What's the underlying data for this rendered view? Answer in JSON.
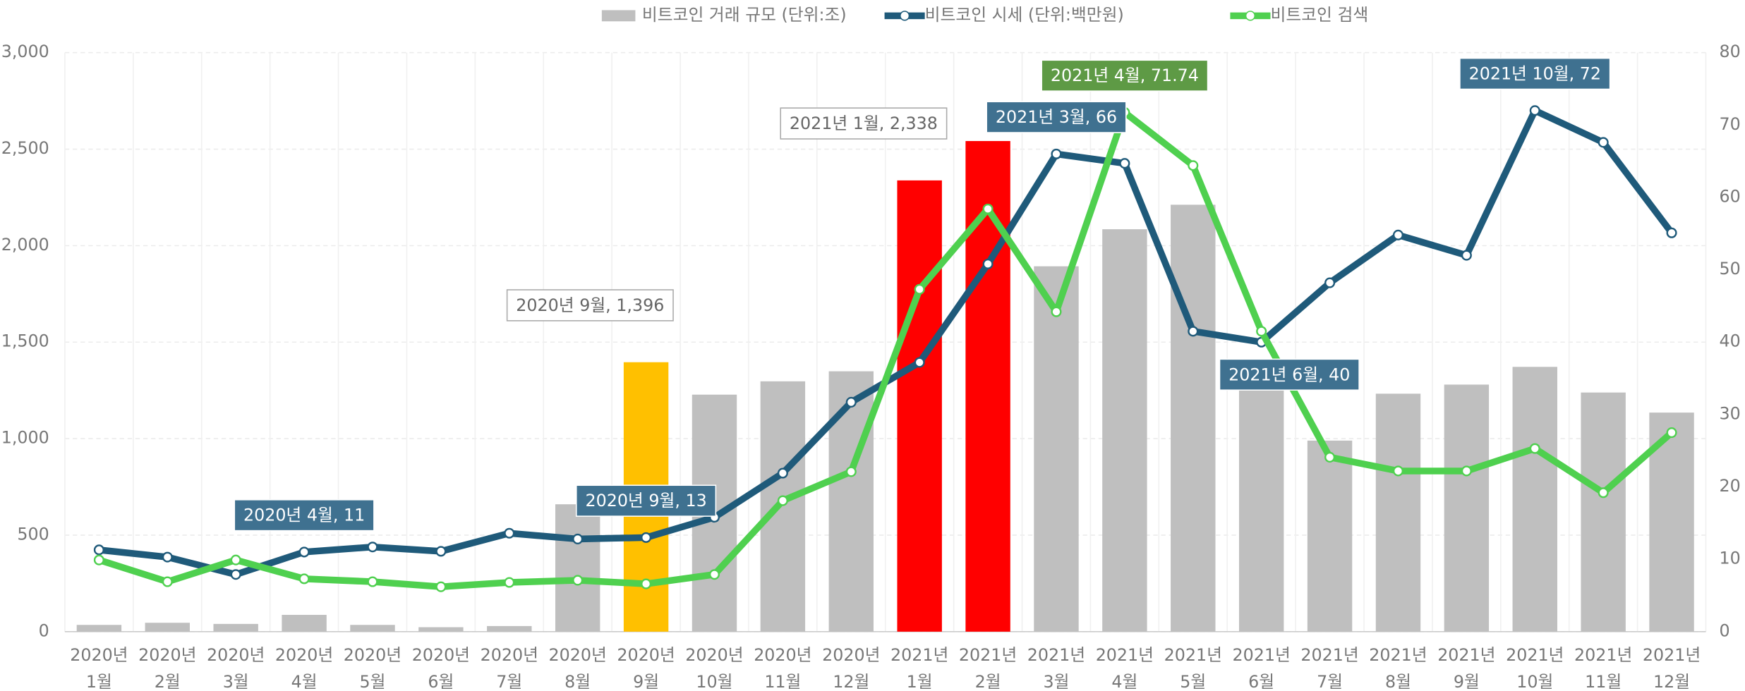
{
  "chart_data": {
    "type": "bar_line",
    "categories": [
      [
        "2020년",
        "1월"
      ],
      [
        "2020년",
        "2월"
      ],
      [
        "2020년",
        "3월"
      ],
      [
        "2020년",
        "4월"
      ],
      [
        "2020년",
        "5월"
      ],
      [
        "2020년",
        "6월"
      ],
      [
        "2020년",
        "7월"
      ],
      [
        "2020년",
        "8월"
      ],
      [
        "2020년",
        "9월"
      ],
      [
        "2020년",
        "10월"
      ],
      [
        "2020년",
        "11월"
      ],
      [
        "2020년",
        "12월"
      ],
      [
        "2021년",
        "1월"
      ],
      [
        "2021년",
        "2월"
      ],
      [
        "2021년",
        "3월"
      ],
      [
        "2021년",
        "4월"
      ],
      [
        "2021년",
        "5월"
      ],
      [
        "2021년",
        "6월"
      ],
      [
        "2021년",
        "7월"
      ],
      [
        "2021년",
        "8월"
      ],
      [
        "2021년",
        "9월"
      ],
      [
        "2021년",
        "10월"
      ],
      [
        "2021년",
        "11월"
      ],
      [
        "2021년",
        "12월"
      ]
    ],
    "series": [
      {
        "name": "비트코인 거래 규모 (단위:조)",
        "type": "bar",
        "color": "#bfbfbf",
        "colors": [
          "#bfbfbf",
          "#bfbfbf",
          "#bfbfbf",
          "#bfbfbf",
          "#bfbfbf",
          "#bfbfbf",
          "#bfbfbf",
          "#bfbfbf",
          "#ffc000",
          "#bfbfbf",
          "#bfbfbf",
          "#bfbfbf",
          "#ff0000",
          "#ff0000",
          "#bfbfbf",
          "#bfbfbf",
          "#bfbfbf",
          "#bfbfbf",
          "#bfbfbf",
          "#bfbfbf",
          "#bfbfbf",
          "#bfbfbf",
          "#bfbfbf",
          "#bfbfbf"
        ],
        "values": [
          35,
          46,
          40,
          87,
          35,
          23,
          29,
          660,
          1396,
          1228,
          1297,
          1349,
          2338,
          2542,
          1893,
          2085,
          2212,
          1330,
          990,
          1233,
          1280,
          1372,
          1239,
          1135
        ],
        "value_labels": [
          null,
          null,
          null,
          null,
          null,
          null,
          null,
          null,
          "2020년 9월, 1,396",
          null,
          null,
          null,
          "2021년 1월, 2,338",
          null,
          null,
          null,
          null,
          null,
          null,
          null,
          null,
          null,
          null,
          null
        ]
      },
      {
        "name": "비트코인 시세 (단위:백만원)",
        "type": "line",
        "axis": "y2",
        "color": "#1f5a7a",
        "values": [
          11.3,
          10.3,
          7.9,
          11,
          11.7,
          11.1,
          13.6,
          12.8,
          13,
          15.8,
          21.9,
          31.7,
          37.2,
          50.8,
          66,
          64.7,
          41.5,
          40,
          48.2,
          54.8,
          52,
          72,
          67.6,
          55.1
        ],
        "value_labels": [
          null,
          null,
          null,
          "2020년 4월, 11",
          null,
          null,
          null,
          null,
          "2020년 9월, 13",
          null,
          null,
          null,
          null,
          null,
          "2021년 3월, 66",
          null,
          null,
          "2021년 6월, 40",
          null,
          null,
          null,
          "2021년 10월, 72",
          null,
          null
        ]
      },
      {
        "name": "비트코인 검색",
        "type": "line",
        "axis": "y2",
        "color": "#4fd04f",
        "values": [
          9.9,
          6.9,
          9.9,
          7.3,
          6.9,
          6.2,
          6.8,
          7.1,
          6.6,
          7.9,
          18.1,
          22.1,
          47.3,
          58.4,
          44.2,
          71.74,
          64.4,
          41.5,
          24.1,
          22.2,
          22.2,
          25.3,
          19.2,
          27.5
        ],
        "value_labels": [
          null,
          null,
          null,
          null,
          null,
          null,
          null,
          null,
          null,
          null,
          null,
          null,
          null,
          null,
          null,
          "2021년 4월, 71.74",
          null,
          null,
          null,
          null,
          null,
          null,
          null,
          null
        ]
      }
    ],
    "ylim": [
      0,
      3000
    ],
    "yticks": [
      0,
      500,
      {
        "value": 1000,
        "label": "1,000"
      },
      {
        "value": 1500,
        "label": "1,500"
      },
      {
        "value": 2000,
        "label": "2,000"
      },
      {
        "value": 2500,
        "label": "2,500"
      },
      {
        "value": 3000,
        "label": "3,000"
      }
    ],
    "y2lim": [
      0,
      80
    ],
    "y2ticks": [
      0,
      10,
      20,
      30,
      40,
      50,
      60,
      70,
      80
    ],
    "grid": true,
    "legend": "top"
  }
}
